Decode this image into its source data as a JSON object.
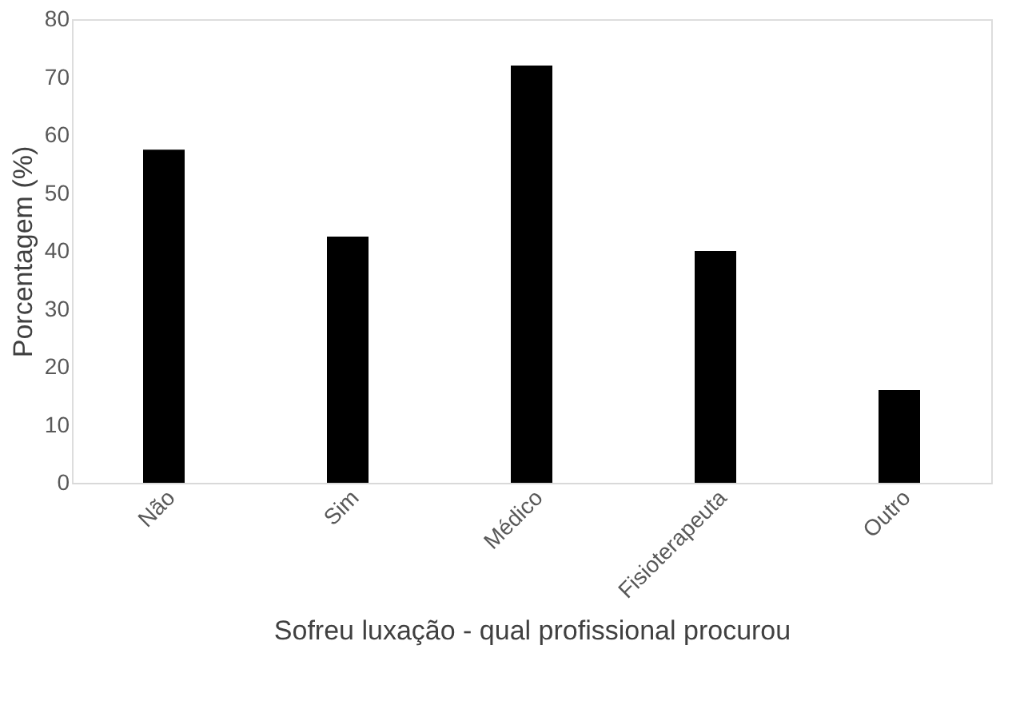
{
  "chart_data": {
    "type": "bar",
    "xlabel": "Sofreu luxação - qual profissional procurou",
    "ylabel": "Porcentagem (%)",
    "categories": [
      "Não",
      "Sim",
      "Médico",
      "Fisioterapeuta",
      "Outro"
    ],
    "values": [
      57.5,
      42.5,
      72,
      40,
      16
    ],
    "color": "#000000",
    "ylim": [
      0,
      80
    ],
    "yticks": [
      0,
      10,
      20,
      30,
      40,
      50,
      60,
      70,
      80
    ],
    "grid": false
  }
}
